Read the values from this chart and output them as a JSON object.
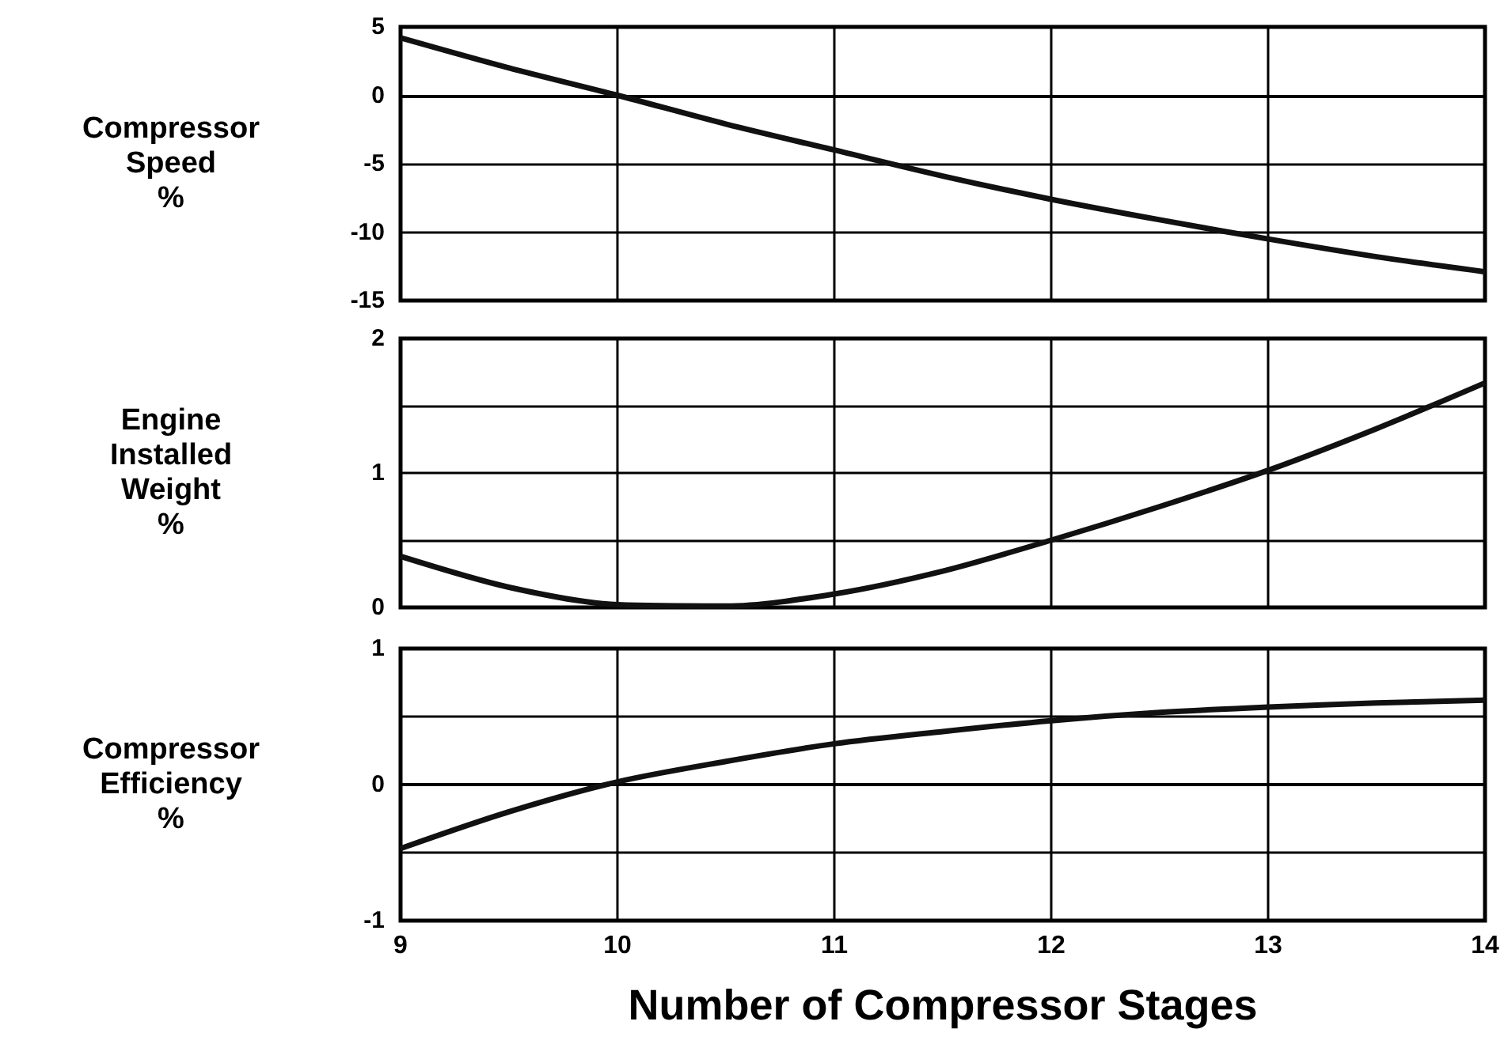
{
  "chart_data": [
    {
      "type": "line",
      "ylabel": "Compressor\nSpeed\n%",
      "x": [
        9,
        9.5,
        10,
        10.5,
        11,
        11.5,
        12,
        12.5,
        13,
        13.5,
        14
      ],
      "series": [
        {
          "color": "#111111",
          "values": [
            4.2,
            2.0,
            0,
            -2.1,
            -4.0,
            -5.9,
            -7.6,
            -9.1,
            -10.5,
            -11.8,
            -12.9
          ]
        }
      ],
      "xlim": [
        9,
        14
      ],
      "xticks": [
        9,
        10,
        11,
        12,
        13,
        14
      ],
      "ylim": [
        -15,
        5
      ],
      "yticks": [
        -15,
        -10,
        -5,
        0,
        5
      ],
      "grid": true,
      "tick_labels": "y",
      "marker": "none",
      "line_style": "solid"
    },
    {
      "type": "line",
      "ylabel": "Engine\nInstalled\nWeight\n%",
      "x": [
        9,
        9.5,
        10,
        10.5,
        11,
        11.5,
        12,
        12.5,
        13,
        13.5,
        14
      ],
      "series": [
        {
          "color": "#111111",
          "values": [
            0.38,
            0.15,
            0.02,
            0.01,
            0.1,
            0.27,
            0.5,
            0.75,
            1.02,
            1.33,
            1.67
          ]
        }
      ],
      "xlim": [
        9,
        14
      ],
      "xticks": [
        9,
        10,
        11,
        12,
        13,
        14
      ],
      "ylim": [
        0,
        2
      ],
      "yticks": [
        0,
        {
          "value": 0.5,
          "label": null
        },
        1,
        {
          "value": 1.5,
          "label": null
        },
        2
      ],
      "grid": true,
      "tick_labels": "y",
      "marker": "none",
      "line_style": "solid"
    },
    {
      "type": "line",
      "ylabel": "Compressor\nEfficiency\n%",
      "xlabel": "Number of Compressor Stages",
      "x": [
        9,
        9.5,
        10,
        10.5,
        11,
        11.5,
        12,
        12.5,
        13,
        13.5,
        14
      ],
      "series": [
        {
          "color": "#111111",
          "values": [
            -0.47,
            -0.2,
            0.02,
            0.17,
            0.3,
            0.39,
            0.47,
            0.53,
            0.57,
            0.6,
            0.62
          ]
        }
      ],
      "xlim": [
        9,
        14
      ],
      "xticks": [
        9,
        10,
        11,
        12,
        13,
        14
      ],
      "ylim": [
        -1,
        1
      ],
      "yticks": [
        -1,
        {
          "value": -0.5,
          "label": null
        },
        0,
        {
          "value": 0.5,
          "label": null
        },
        1
      ],
      "grid": true,
      "marker": "none",
      "line_style": "solid"
    }
  ]
}
